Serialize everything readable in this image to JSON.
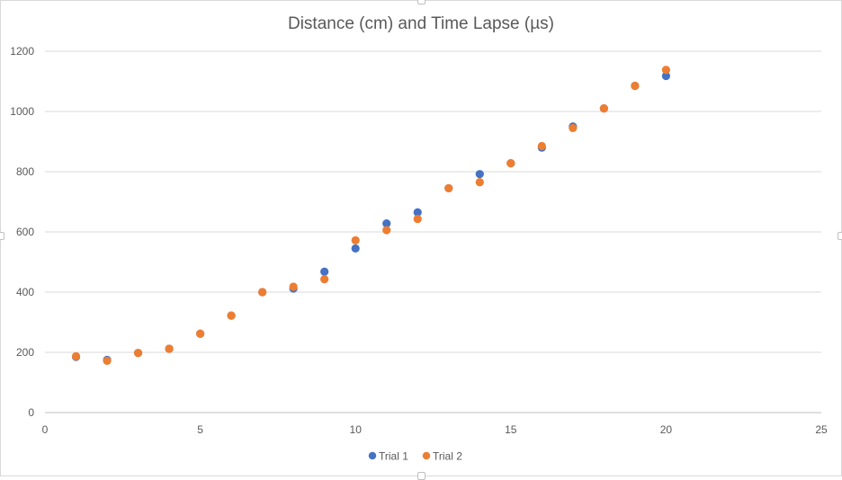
{
  "chart_data": {
    "type": "scatter",
    "title": "Distance (cm) and Time Lapse (µs)",
    "xlabel": "",
    "ylabel": "",
    "xlim": [
      0,
      25
    ],
    "ylim": [
      0,
      1200
    ],
    "xticks": [
      0,
      5,
      10,
      15,
      20,
      25
    ],
    "yticks": [
      0,
      200,
      400,
      600,
      800,
      1000,
      1200
    ],
    "grid": "horizontal",
    "legend_position": "bottom",
    "series": [
      {
        "name": "Trial 1",
        "color": "#4472c4",
        "x": [
          1,
          2,
          3,
          4,
          5,
          6,
          7,
          8,
          9,
          10,
          11,
          12,
          13,
          14,
          15,
          16,
          17,
          18,
          19,
          20
        ],
        "y": [
          185,
          175,
          198,
          212,
          262,
          322,
          400,
          412,
          468,
          545,
          628,
          665,
          745,
          792,
          828,
          880,
          950,
          1010,
          1085,
          1118
        ]
      },
      {
        "name": "Trial 2",
        "color": "#ed7d31",
        "x": [
          1,
          2,
          3,
          4,
          5,
          6,
          7,
          8,
          9,
          10,
          11,
          12,
          13,
          14,
          15,
          16,
          17,
          18,
          19,
          20
        ],
        "y": [
          187,
          172,
          198,
          212,
          262,
          322,
          400,
          418,
          443,
          572,
          606,
          643,
          745,
          765,
          828,
          885,
          945,
          1010,
          1085,
          1138
        ]
      }
    ]
  }
}
